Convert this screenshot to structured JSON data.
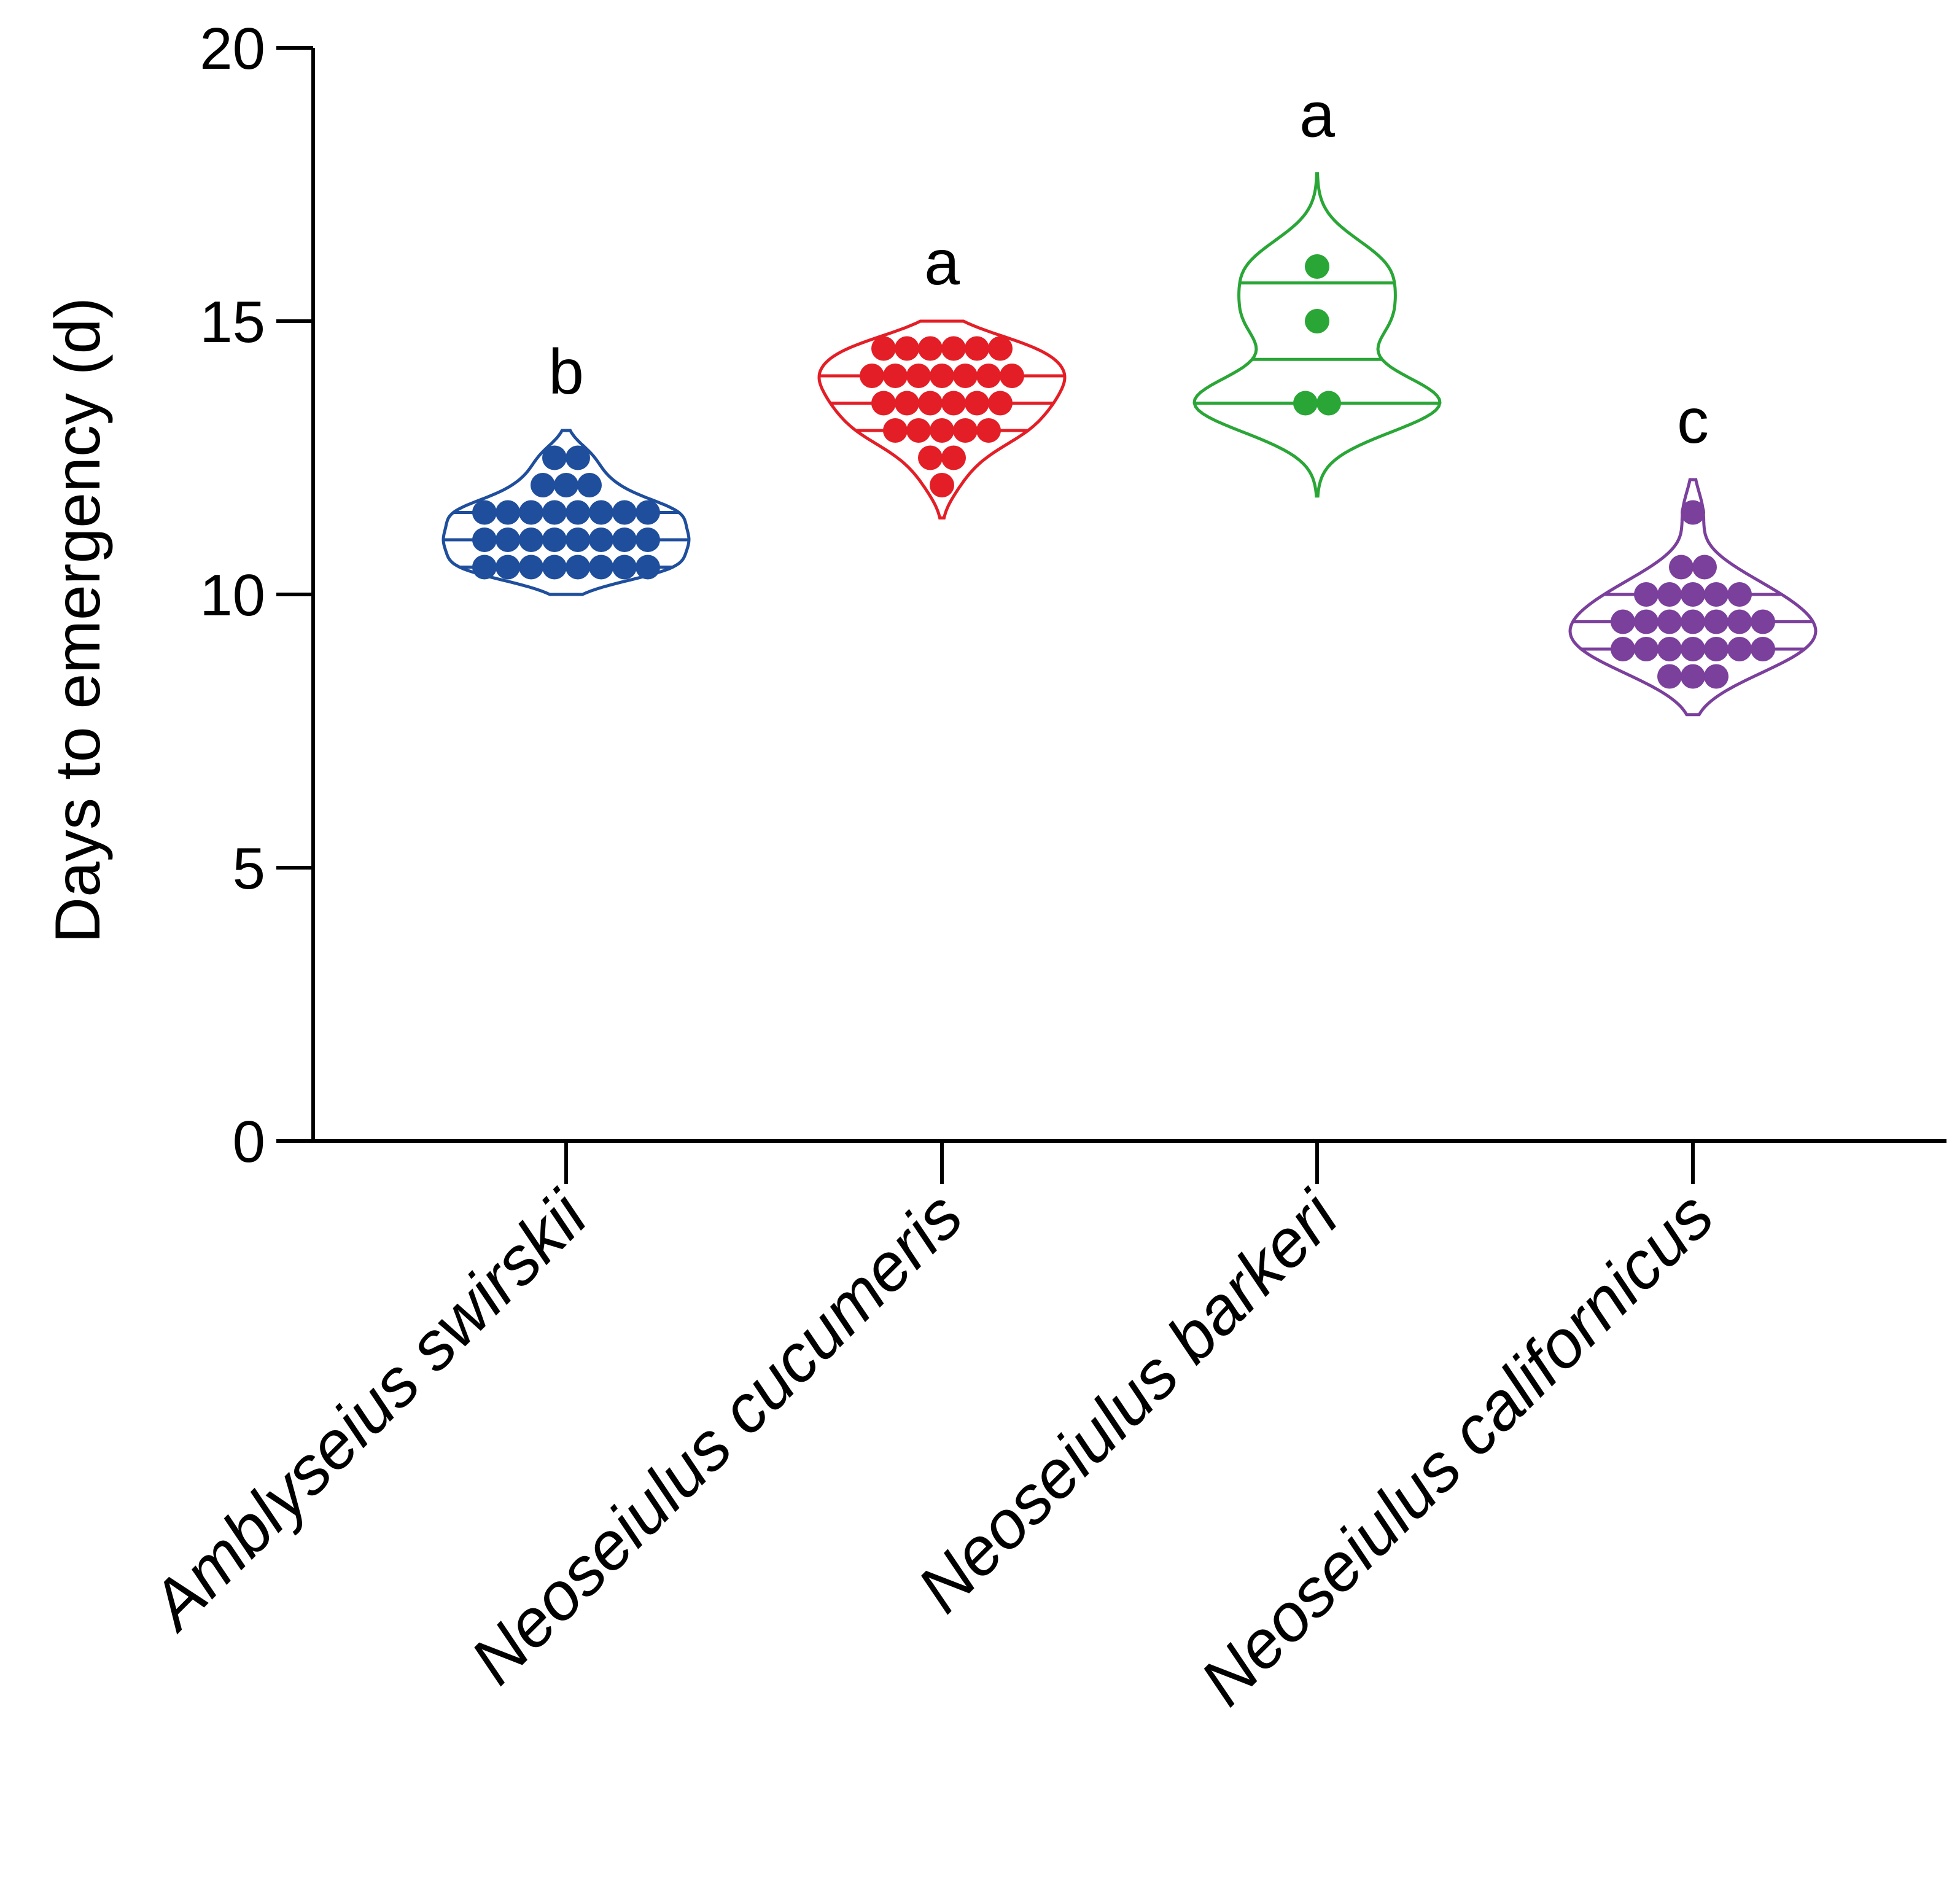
{
  "chart_data": {
    "type": "violin",
    "title": "",
    "xlabel": "",
    "ylabel": "Days to emergency (d)",
    "ylim": [
      0,
      20
    ],
    "yticks": [
      0,
      5,
      10,
      15,
      20
    ],
    "yticklabels": [
      "0",
      "5",
      "10",
      "15",
      "20"
    ],
    "categories": [
      "Amblyseius swirskii",
      "Neoseiulus cucumeris",
      "Neoseiulus barkeri",
      "Neoseiulus californicus"
    ],
    "series": [
      {
        "name": "Amblyseius swirskii",
        "color": "#1f4e9c",
        "significance": "b",
        "range": [
          10.0,
          13.0
        ],
        "quartile_lines": [
          10.5,
          11.0,
          11.5
        ],
        "points": [
          {
            "value": 12.5,
            "count": 2
          },
          {
            "value": 12.0,
            "count": 3
          },
          {
            "value": 11.5,
            "count": 8
          },
          {
            "value": 11.0,
            "count": 8
          },
          {
            "value": 10.5,
            "count": 8
          }
        ]
      },
      {
        "name": "Neoseiulus cucumeris",
        "color": "#e41e26",
        "significance": "a",
        "range": [
          11.4,
          15.0
        ],
        "quartile_lines": [
          13.0,
          13.5,
          14.0
        ],
        "points": [
          {
            "value": 14.5,
            "count": 6
          },
          {
            "value": 14.0,
            "count": 7
          },
          {
            "value": 13.5,
            "count": 6
          },
          {
            "value": 13.0,
            "count": 5
          },
          {
            "value": 12.5,
            "count": 2
          },
          {
            "value": 12.0,
            "count": 1
          }
        ]
      },
      {
        "name": "Neoseiulus barkeri",
        "color": "#2aa637",
        "significance": "a",
        "range": [
          11.8,
          17.7
        ],
        "quartile_lines": [
          13.5,
          14.3,
          15.7
        ],
        "points": [
          {
            "value": 16.0,
            "count": 1
          },
          {
            "value": 15.0,
            "count": 1
          },
          {
            "value": 13.5,
            "count": 2
          }
        ]
      },
      {
        "name": "Neoseiulus californicus",
        "color": "#7b3f9c",
        "significance": "c",
        "range": [
          7.8,
          12.1
        ],
        "quartile_lines": [
          9.0,
          9.5,
          10.0
        ],
        "points": [
          {
            "value": 11.5,
            "count": 1
          },
          {
            "value": 10.5,
            "count": 2
          },
          {
            "value": 10.0,
            "count": 5
          },
          {
            "value": 9.5,
            "count": 7
          },
          {
            "value": 9.0,
            "count": 7
          },
          {
            "value": 8.5,
            "count": 3
          }
        ]
      }
    ]
  }
}
